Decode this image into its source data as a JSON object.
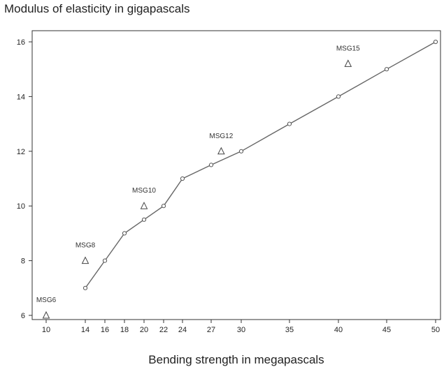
{
  "chart_data": {
    "type": "scatter",
    "title": "Modulus of elasticity in gigapascals",
    "xlabel": "Bending strength in megapascals",
    "ylabel": "",
    "x_scale": "categorical-ticks",
    "x_ticks": [
      10,
      14,
      16,
      18,
      20,
      22,
      24,
      27,
      30,
      35,
      40,
      45,
      50
    ],
    "y_ticks": [
      6,
      8,
      10,
      12,
      14,
      16
    ],
    "ylim": [
      5.8,
      16.3
    ],
    "grid": false,
    "legend": "none",
    "series": [
      {
        "marker": "circle",
        "line": true,
        "color": "#555555",
        "points": [
          {
            "x": 14,
            "y": 7
          },
          {
            "x": 16,
            "y": 8
          },
          {
            "x": 18,
            "y": 9
          },
          {
            "x": 20,
            "y": 9.5
          },
          {
            "x": 22,
            "y": 10
          },
          {
            "x": 24,
            "y": 11
          },
          {
            "x": 27,
            "y": 11.5
          },
          {
            "x": 30,
            "y": 12
          },
          {
            "x": 35,
            "y": 13
          },
          {
            "x": 40,
            "y": 14
          },
          {
            "x": 45,
            "y": 15
          },
          {
            "x": 50,
            "y": 16
          }
        ]
      },
      {
        "marker": "triangle",
        "line": false,
        "color": "#555555",
        "points": [
          {
            "x": 10,
            "y": 6,
            "label": "MSG6"
          },
          {
            "x": 14,
            "y": 8,
            "label": "MSG8"
          },
          {
            "x": 20,
            "y": 10,
            "label": "MSG10"
          },
          {
            "x": 28,
            "y": 12,
            "label": "MSG12"
          },
          {
            "x": 41,
            "y": 15.2,
            "label": "MSG15"
          }
        ]
      }
    ]
  }
}
